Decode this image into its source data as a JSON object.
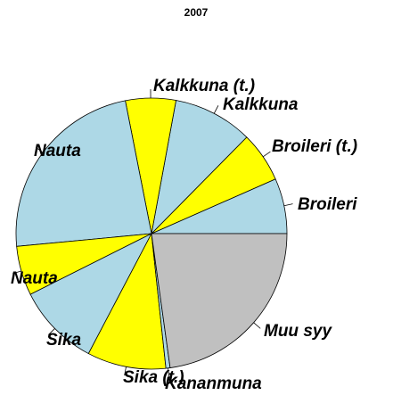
{
  "chart_data": {
    "type": "pie",
    "title": "2007",
    "categories": [
      "Broileri",
      "Broileri (t.)",
      "Kalkkuna",
      "Kalkkuna (t.)",
      "Nauta",
      "Nauta",
      "Sika",
      "Sika (t.)",
      "Kananmuna",
      "Muu syy"
    ],
    "values": [
      6.6,
      6,
      9.5,
      6,
      23.4,
      5.9,
      9.9,
      9.4,
      0.5,
      22.8
    ],
    "colors": [
      "#add8e6",
      "#ffff00",
      "#add8e6",
      "#ffff00",
      "#add8e6",
      "#ffff00",
      "#add8e6",
      "#ffff00",
      "#add8e6",
      "#c0c0c0"
    ]
  }
}
